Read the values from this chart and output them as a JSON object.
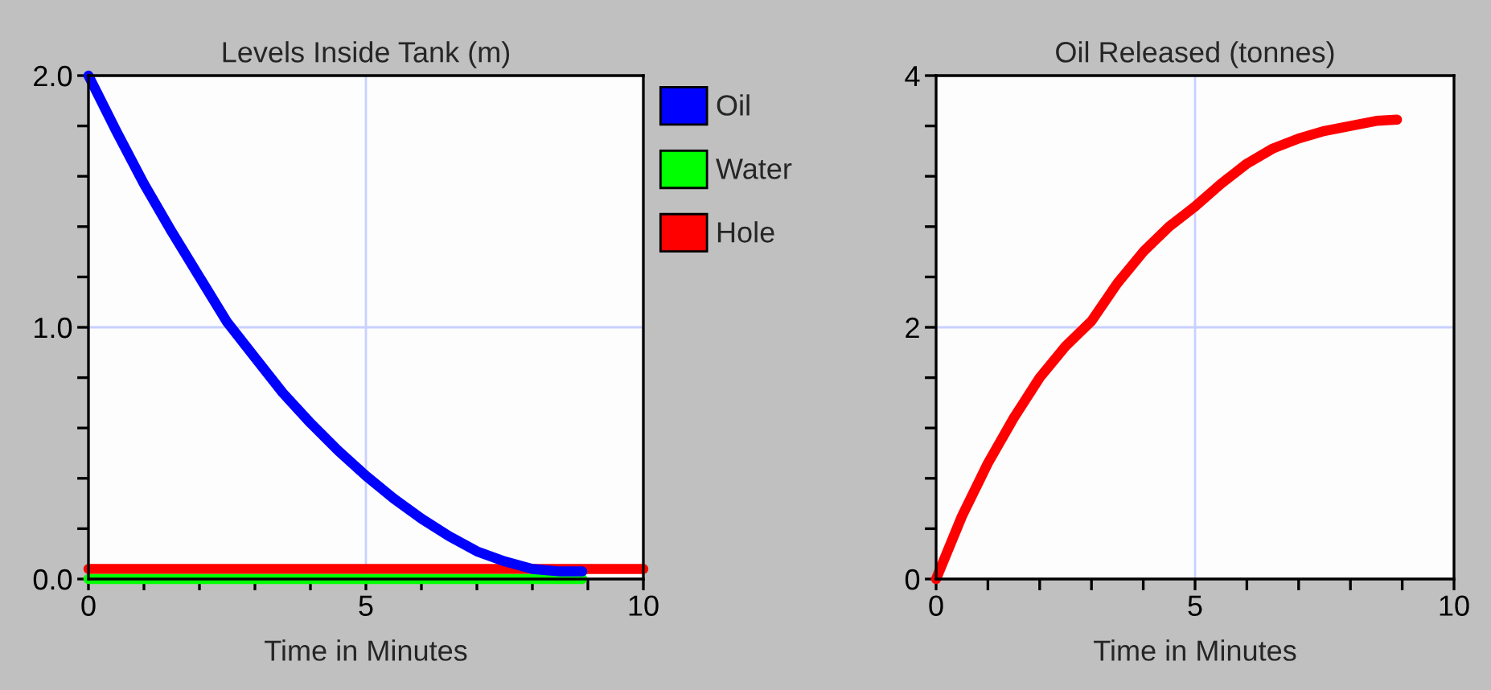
{
  "chart_data": [
    {
      "type": "line",
      "title": "Levels Inside Tank (m)",
      "xlabel": "Time in Minutes",
      "xlim": [
        0,
        10
      ],
      "ylim": [
        0,
        2.0
      ],
      "xticks": [
        0,
        {
          "value": 1,
          "label": null
        },
        {
          "value": 2,
          "label": null
        },
        {
          "value": 3,
          "label": null
        },
        {
          "value": 4,
          "label": null
        },
        5,
        {
          "value": 6,
          "label": null
        },
        {
          "value": 7,
          "label": null
        },
        {
          "value": 8,
          "label": null
        },
        {
          "value": 9,
          "label": null
        },
        10
      ],
      "yticks": [
        {
          "value": 0,
          "label": "0.0"
        },
        {
          "value": 0.2,
          "label": null
        },
        {
          "value": 0.4,
          "label": null
        },
        {
          "value": 0.6,
          "label": null
        },
        {
          "value": 0.8,
          "label": null
        },
        {
          "value": 1.0,
          "label": "1.0"
        },
        {
          "value": 1.2,
          "label": null
        },
        {
          "value": 1.4,
          "label": null
        },
        {
          "value": 1.6,
          "label": null
        },
        {
          "value": 1.8,
          "label": null
        },
        {
          "value": 2.0,
          "label": "2.0"
        }
      ],
      "grid": true,
      "legend": "right",
      "series": [
        {
          "name": "Oil",
          "color": "#0000ff",
          "x": [
            0,
            0.5,
            1,
            1.5,
            2,
            2.5,
            3,
            3.5,
            4,
            4.5,
            5,
            5.5,
            6,
            6.5,
            7,
            7.5,
            8,
            8.5,
            8.9
          ],
          "values": [
            2.0,
            1.78,
            1.57,
            1.38,
            1.2,
            1.02,
            0.88,
            0.74,
            0.62,
            0.51,
            0.41,
            0.32,
            0.24,
            0.17,
            0.11,
            0.07,
            0.04,
            0.03,
            0.03
          ]
        },
        {
          "name": "Water",
          "color": "#00ff00",
          "x": [
            0,
            8.9
          ],
          "values": [
            0,
            0
          ]
        },
        {
          "name": "Hole",
          "color": "#ff0000",
          "x": [
            0,
            10
          ],
          "values": [
            0.04,
            0.04
          ]
        }
      ]
    },
    {
      "type": "line",
      "title": "Oil Released (tonnes)",
      "xlabel": "Time in Minutes",
      "xlim": [
        0,
        10
      ],
      "ylim": [
        0,
        4
      ],
      "xticks": [
        0,
        {
          "value": 1,
          "label": null
        },
        {
          "value": 2,
          "label": null
        },
        {
          "value": 3,
          "label": null
        },
        {
          "value": 4,
          "label": null
        },
        5,
        {
          "value": 6,
          "label": null
        },
        {
          "value": 7,
          "label": null
        },
        {
          "value": 8,
          "label": null
        },
        {
          "value": 9,
          "label": null
        },
        10
      ],
      "yticks": [
        0,
        {
          "value": 0.4,
          "label": null
        },
        {
          "value": 0.8,
          "label": null
        },
        {
          "value": 1.2,
          "label": null
        },
        {
          "value": 1.6,
          "label": null
        },
        2,
        {
          "value": 2.4,
          "label": null
        },
        {
          "value": 2.8,
          "label": null
        },
        {
          "value": 3.2,
          "label": null
        },
        {
          "value": 3.6,
          "label": null
        },
        4
      ],
      "grid": true,
      "series": [
        {
          "color": "#ff0000",
          "x": [
            0,
            0.5,
            1,
            1.5,
            2,
            2.5,
            3,
            3.5,
            4,
            4.5,
            5,
            5.5,
            6,
            6.5,
            7,
            7.5,
            8,
            8.5,
            8.9
          ],
          "values": [
            0,
            0.5,
            0.92,
            1.28,
            1.6,
            1.85,
            2.05,
            2.35,
            2.6,
            2.8,
            2.96,
            3.14,
            3.3,
            3.42,
            3.5,
            3.56,
            3.6,
            3.64,
            3.65
          ]
        }
      ]
    }
  ]
}
